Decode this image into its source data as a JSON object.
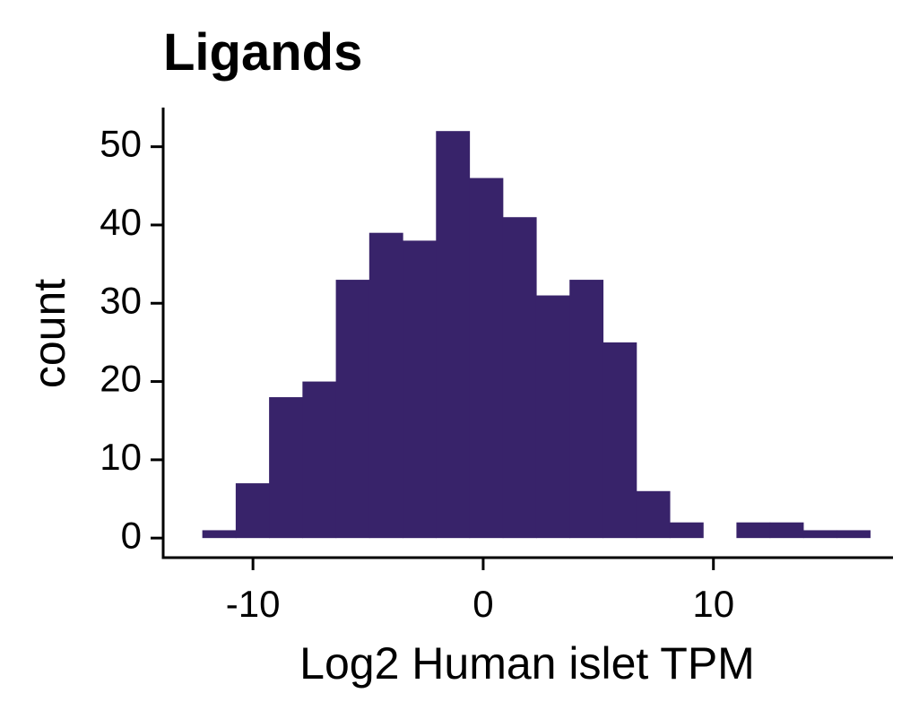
{
  "chart_data": {
    "type": "histogram",
    "title": "Ligands",
    "xlabel": "Log2 Human islet TPM",
    "ylabel": "count",
    "xlim": [
      -13.9,
      17.8
    ],
    "ylim": [
      -2.5,
      55
    ],
    "x_ticks": [
      -10,
      0,
      10
    ],
    "x_tick_labels": [
      "-10",
      "0",
      "10"
    ],
    "y_ticks": [
      0,
      10,
      20,
      30,
      40,
      50
    ],
    "y_tick_labels": [
      "0",
      "10",
      "20",
      "30",
      "40",
      "50"
    ],
    "grid": false,
    "legend": "none",
    "bin_width": 1.45,
    "bins": [
      {
        "x0": -12.2,
        "x1": -10.75,
        "count": 1
      },
      {
        "x0": -10.75,
        "x1": -9.3,
        "count": 7
      },
      {
        "x0": -9.3,
        "x1": -7.85,
        "count": 18
      },
      {
        "x0": -7.85,
        "x1": -6.4,
        "count": 20
      },
      {
        "x0": -6.4,
        "x1": -4.95,
        "count": 33
      },
      {
        "x0": -4.95,
        "x1": -3.5,
        "count": 39
      },
      {
        "x0": -3.5,
        "x1": -2.05,
        "count": 38
      },
      {
        "x0": -2.05,
        "x1": -0.6,
        "count": 52
      },
      {
        "x0": -0.6,
        "x1": 0.85,
        "count": 46
      },
      {
        "x0": 0.85,
        "x1": 2.3,
        "count": 41
      },
      {
        "x0": 2.3,
        "x1": 3.75,
        "count": 31
      },
      {
        "x0": 3.75,
        "x1": 5.2,
        "count": 33
      },
      {
        "x0": 5.2,
        "x1": 6.65,
        "count": 25
      },
      {
        "x0": 6.65,
        "x1": 8.1,
        "count": 6
      },
      {
        "x0": 8.1,
        "x1": 9.55,
        "count": 2
      },
      {
        "x0": 9.55,
        "x1": 11.0,
        "count": 0
      },
      {
        "x0": 11.0,
        "x1": 12.45,
        "count": 2
      },
      {
        "x0": 12.45,
        "x1": 13.9,
        "count": 2
      },
      {
        "x0": 13.9,
        "x1": 15.35,
        "count": 1
      },
      {
        "x0": 15.35,
        "x1": 16.8,
        "count": 1
      }
    ],
    "colors": {
      "bar": "#38236A",
      "axis": "#000000",
      "text": "#000000"
    }
  }
}
